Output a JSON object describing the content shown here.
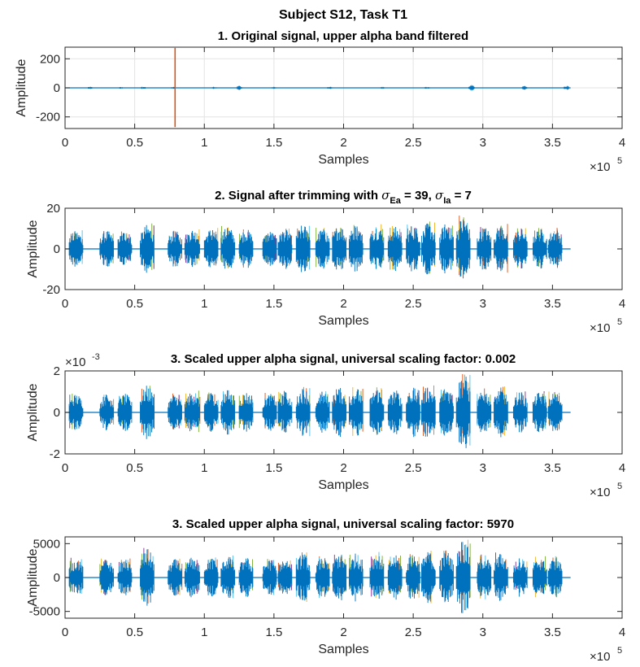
{
  "suptitle": "Subject S12, Task T1",
  "chart_data": [
    {
      "type": "line",
      "title": "1. Original signal, upper alpha band filtered",
      "xlabel": "Samples",
      "ylabel": "Amplitude",
      "x_exponent_label": "×10",
      "x_exponent_sup": "5",
      "xlim": [
        0,
        4
      ],
      "ylim": [
        -280,
        280
      ],
      "xticks": [
        0,
        0.5,
        1,
        1.5,
        2,
        2.5,
        3,
        3.5,
        4
      ],
      "xtick_labels": [
        "0",
        "0.5",
        "1",
        "1.5",
        "2",
        "2.5",
        "3",
        "3.5",
        "4"
      ],
      "yticks": [
        -200,
        0,
        200
      ],
      "ytick_labels": [
        "-200",
        "0",
        "200"
      ],
      "grid": true,
      "signal_end": 3.63,
      "bursts": [
        {
          "x": 0.18,
          "amp": 8
        },
        {
          "x": 0.4,
          "amp": 6
        },
        {
          "x": 0.56,
          "amp": 10
        },
        {
          "x": 0.78,
          "amp": 7
        },
        {
          "x": 1.07,
          "amp": 8
        },
        {
          "x": 1.25,
          "amp": 16
        },
        {
          "x": 1.5,
          "amp": 7
        },
        {
          "x": 1.9,
          "amp": 8
        },
        {
          "x": 2.28,
          "amp": 7
        },
        {
          "x": 2.6,
          "amp": 8
        },
        {
          "x": 2.92,
          "amp": 24
        },
        {
          "x": 3.3,
          "amp": 14
        },
        {
          "x": 3.6,
          "amp": 18
        }
      ],
      "spikes": [
        {
          "x": 0.79,
          "min": -270,
          "max": 275,
          "color": "#d95319"
        }
      ],
      "color": "#0072bd"
    },
    {
      "type": "line",
      "title_main": "2. Signal after trimming with ",
      "title_sym1": "σ",
      "title_sub1": "Ea",
      "title_mid": " = 39, ",
      "title_sym2": "σ",
      "title_sub2": "Ia",
      "title_end": " = 7",
      "xlabel": "Samples",
      "ylabel": "Amplitude",
      "x_exponent_label": "×10",
      "x_exponent_sup": "5",
      "xlim": [
        0,
        4
      ],
      "ylim": [
        -20,
        20
      ],
      "xticks": [
        0,
        0.5,
        1,
        1.5,
        2,
        2.5,
        3,
        3.5,
        4
      ],
      "xtick_labels": [
        "0",
        "0.5",
        "1",
        "1.5",
        "2",
        "2.5",
        "3",
        "3.5",
        "4"
      ],
      "yticks": [
        -20,
        0,
        20
      ],
      "ytick_labels": [
        "-20",
        "0",
        "20"
      ],
      "grid": false,
      "signal_end": 3.63,
      "bursts": [
        {
          "x": 0.03,
          "w": 0.1,
          "amp": 9
        },
        {
          "x": 0.25,
          "w": 0.1,
          "amp": 9
        },
        {
          "x": 0.38,
          "w": 0.1,
          "amp": 9
        },
        {
          "x": 0.54,
          "w": 0.1,
          "amp": 12
        },
        {
          "x": 0.74,
          "w": 0.1,
          "amp": 9
        },
        {
          "x": 0.86,
          "w": 0.11,
          "amp": 10
        },
        {
          "x": 1.0,
          "w": 0.1,
          "amp": 10
        },
        {
          "x": 1.12,
          "w": 0.1,
          "amp": 11
        },
        {
          "x": 1.25,
          "w": 0.1,
          "amp": 10
        },
        {
          "x": 1.42,
          "w": 0.1,
          "amp": 9
        },
        {
          "x": 1.53,
          "w": 0.1,
          "amp": 10
        },
        {
          "x": 1.66,
          "w": 0.1,
          "amp": 12
        },
        {
          "x": 1.8,
          "w": 0.1,
          "amp": 10
        },
        {
          "x": 1.92,
          "w": 0.1,
          "amp": 12
        },
        {
          "x": 2.04,
          "w": 0.1,
          "amp": 12
        },
        {
          "x": 2.19,
          "w": 0.1,
          "amp": 12
        },
        {
          "x": 2.32,
          "w": 0.1,
          "amp": 11
        },
        {
          "x": 2.45,
          "w": 0.1,
          "amp": 12
        },
        {
          "x": 2.56,
          "w": 0.1,
          "amp": 13
        },
        {
          "x": 2.69,
          "w": 0.1,
          "amp": 13
        },
        {
          "x": 2.81,
          "w": 0.1,
          "amp": 16
        },
        {
          "x": 2.96,
          "w": 0.1,
          "amp": 11
        },
        {
          "x": 3.08,
          "w": 0.1,
          "amp": 12
        },
        {
          "x": 3.22,
          "w": 0.1,
          "amp": 10
        },
        {
          "x": 3.36,
          "w": 0.1,
          "amp": 10
        },
        {
          "x": 3.47,
          "w": 0.1,
          "amp": 10
        }
      ],
      "color": "#0072bd"
    },
    {
      "type": "line",
      "title": "3. Scaled upper alpha signal, universal scaling factor: 0.002",
      "xlabel": "Samples",
      "ylabel": "Amplitude",
      "y_exponent_label": "×10",
      "y_exponent_sup": "-3",
      "x_exponent_label": "×10",
      "x_exponent_sup": "5",
      "xlim": [
        0,
        4
      ],
      "ylim": [
        -2,
        2
      ],
      "xticks": [
        0,
        0.5,
        1,
        1.5,
        2,
        2.5,
        3,
        3.5,
        4
      ],
      "xtick_labels": [
        "0",
        "0.5",
        "1",
        "1.5",
        "2",
        "2.5",
        "3",
        "3.5",
        "4"
      ],
      "yticks": [
        -2,
        0,
        2
      ],
      "ytick_labels": [
        "-2",
        "0",
        "2"
      ],
      "grid": false,
      "signal_end": 3.63,
      "bursts": [
        {
          "x": 0.03,
          "w": 0.1,
          "amp": 0.9
        },
        {
          "x": 0.25,
          "w": 0.1,
          "amp": 0.9
        },
        {
          "x": 0.38,
          "w": 0.1,
          "amp": 0.9
        },
        {
          "x": 0.54,
          "w": 0.1,
          "amp": 1.3
        },
        {
          "x": 0.74,
          "w": 0.1,
          "amp": 0.9
        },
        {
          "x": 0.86,
          "w": 0.11,
          "amp": 1.0
        },
        {
          "x": 1.0,
          "w": 0.1,
          "amp": 1.0
        },
        {
          "x": 1.12,
          "w": 0.1,
          "amp": 1.1
        },
        {
          "x": 1.25,
          "w": 0.1,
          "amp": 1.0
        },
        {
          "x": 1.42,
          "w": 0.1,
          "amp": 0.9
        },
        {
          "x": 1.53,
          "w": 0.1,
          "amp": 1.0
        },
        {
          "x": 1.66,
          "w": 0.1,
          "amp": 1.2
        },
        {
          "x": 1.8,
          "w": 0.1,
          "amp": 1.0
        },
        {
          "x": 1.92,
          "w": 0.1,
          "amp": 1.2
        },
        {
          "x": 2.04,
          "w": 0.1,
          "amp": 1.2
        },
        {
          "x": 2.19,
          "w": 0.1,
          "amp": 1.2
        },
        {
          "x": 2.32,
          "w": 0.1,
          "amp": 1.1
        },
        {
          "x": 2.45,
          "w": 0.1,
          "amp": 1.2
        },
        {
          "x": 2.56,
          "w": 0.1,
          "amp": 1.3
        },
        {
          "x": 2.69,
          "w": 0.1,
          "amp": 1.3
        },
        {
          "x": 2.81,
          "w": 0.1,
          "amp": 1.9
        },
        {
          "x": 2.96,
          "w": 0.1,
          "amp": 1.1
        },
        {
          "x": 3.08,
          "w": 0.1,
          "amp": 1.2
        },
        {
          "x": 3.22,
          "w": 0.1,
          "amp": 1.0
        },
        {
          "x": 3.36,
          "w": 0.1,
          "amp": 1.0
        },
        {
          "x": 3.47,
          "w": 0.1,
          "amp": 1.0
        }
      ],
      "color": "#0072bd"
    },
    {
      "type": "line",
      "title": "3. Scaled upper alpha signal, universal scaling factor: 5970",
      "xlabel": "Samples",
      "ylabel": "Amplitude",
      "x_exponent_label": "×10",
      "x_exponent_sup": "5",
      "xlim": [
        0,
        4
      ],
      "ylim": [
        -6000,
        6000
      ],
      "xticks": [
        0,
        0.5,
        1,
        1.5,
        2,
        2.5,
        3,
        3.5,
        4
      ],
      "xtick_labels": [
        "0",
        "0.5",
        "1",
        "1.5",
        "2",
        "2.5",
        "3",
        "3.5",
        "4"
      ],
      "yticks": [
        -5000,
        0,
        5000
      ],
      "ytick_labels": [
        "-5000",
        "0",
        "5000"
      ],
      "grid": false,
      "signal_end": 3.63,
      "bursts": [
        {
          "x": 0.03,
          "w": 0.1,
          "amp": 2800
        },
        {
          "x": 0.25,
          "w": 0.1,
          "amp": 2700
        },
        {
          "x": 0.38,
          "w": 0.1,
          "amp": 2700
        },
        {
          "x": 0.54,
          "w": 0.1,
          "amp": 4200
        },
        {
          "x": 0.74,
          "w": 0.1,
          "amp": 2700
        },
        {
          "x": 0.86,
          "w": 0.11,
          "amp": 3000
        },
        {
          "x": 1.0,
          "w": 0.1,
          "amp": 3000
        },
        {
          "x": 1.12,
          "w": 0.1,
          "amp": 3200
        },
        {
          "x": 1.25,
          "w": 0.1,
          "amp": 3000
        },
        {
          "x": 1.42,
          "w": 0.1,
          "amp": 2700
        },
        {
          "x": 1.53,
          "w": 0.1,
          "amp": 3000
        },
        {
          "x": 1.66,
          "w": 0.1,
          "amp": 3600
        },
        {
          "x": 1.8,
          "w": 0.1,
          "amp": 3000
        },
        {
          "x": 1.92,
          "w": 0.1,
          "amp": 3600
        },
        {
          "x": 2.04,
          "w": 0.1,
          "amp": 3600
        },
        {
          "x": 2.19,
          "w": 0.1,
          "amp": 3600
        },
        {
          "x": 2.32,
          "w": 0.1,
          "amp": 3300
        },
        {
          "x": 2.45,
          "w": 0.1,
          "amp": 3600
        },
        {
          "x": 2.56,
          "w": 0.1,
          "amp": 3900
        },
        {
          "x": 2.69,
          "w": 0.1,
          "amp": 3900
        },
        {
          "x": 2.81,
          "w": 0.1,
          "amp": 5800
        },
        {
          "x": 2.96,
          "w": 0.1,
          "amp": 3300
        },
        {
          "x": 3.08,
          "w": 0.1,
          "amp": 3600
        },
        {
          "x": 3.22,
          "w": 0.1,
          "amp": 3000
        },
        {
          "x": 3.36,
          "w": 0.1,
          "amp": 3000
        },
        {
          "x": 3.47,
          "w": 0.1,
          "amp": 3000
        }
      ],
      "color": "#0072bd"
    }
  ]
}
